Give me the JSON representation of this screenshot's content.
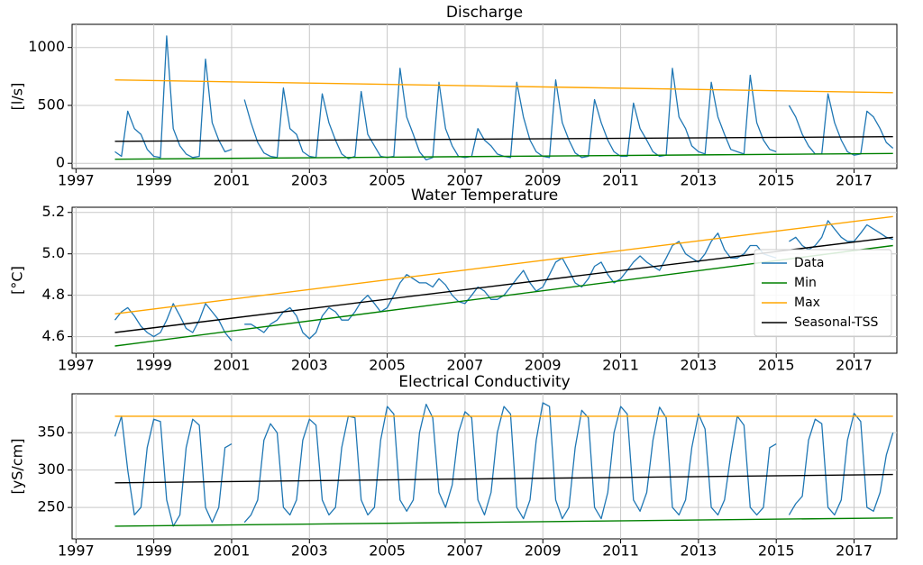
{
  "chart_data": [
    {
      "type": "line",
      "title": "Discharge",
      "ylabel": "[l/s]",
      "grid": true,
      "xlim": [
        1996.9,
        2018.1
      ],
      "xticks": [
        1997,
        1999,
        2001,
        2003,
        2005,
        2007,
        2009,
        2011,
        2013,
        2015,
        2017
      ],
      "ylim": [
        -45,
        1200
      ],
      "yticks": [
        0,
        500,
        1000
      ],
      "x": [
        1998,
        1998.17,
        1998.33,
        1998.5,
        1998.67,
        1998.83,
        1999,
        1999.17,
        1999.33,
        1999.5,
        1999.67,
        1999.83,
        2000,
        2000.17,
        2000.33,
        2000.5,
        2000.67,
        2000.83,
        2001,
        2001.17,
        2001.33,
        2001.5,
        2001.67,
        2001.83,
        2002,
        2002.17,
        2002.33,
        2002.5,
        2002.67,
        2002.83,
        2003,
        2003.17,
        2003.33,
        2003.5,
        2003.67,
        2003.83,
        2004,
        2004.17,
        2004.33,
        2004.5,
        2004.67,
        2004.83,
        2005,
        2005.17,
        2005.33,
        2005.5,
        2005.67,
        2005.83,
        2006,
        2006.17,
        2006.33,
        2006.5,
        2006.67,
        2006.83,
        2007,
        2007.17,
        2007.33,
        2007.5,
        2007.67,
        2007.83,
        2008,
        2008.17,
        2008.33,
        2008.5,
        2008.67,
        2008.83,
        2009,
        2009.17,
        2009.33,
        2009.5,
        2009.67,
        2009.83,
        2010,
        2010.17,
        2010.33,
        2010.5,
        2010.67,
        2010.83,
        2011,
        2011.17,
        2011.33,
        2011.5,
        2011.67,
        2011.83,
        2012,
        2012.17,
        2012.33,
        2012.5,
        2012.67,
        2012.83,
        2013,
        2013.17,
        2013.33,
        2013.5,
        2013.67,
        2013.83,
        2014,
        2014.17,
        2014.33,
        2014.5,
        2014.67,
        2014.83,
        2015,
        2015.17,
        2015.33,
        2015.5,
        2015.67,
        2015.83,
        2016,
        2016.17,
        2016.33,
        2016.5,
        2016.67,
        2016.83,
        2017,
        2017.17,
        2017.33,
        2017.5,
        2017.67,
        2017.83,
        2018
      ],
      "series": [
        {
          "name": "Data",
          "color": "#1f77b4",
          "values": [
            100,
            60,
            450,
            300,
            250,
            120,
            60,
            50,
            1100,
            300,
            150,
            80,
            50,
            60,
            900,
            350,
            200,
            100,
            120,
            null,
            550,
            350,
            180,
            90,
            60,
            50,
            650,
            300,
            250,
            100,
            60,
            50,
            600,
            350,
            200,
            80,
            40,
            60,
            620,
            250,
            150,
            60,
            50,
            60,
            820,
            400,
            250,
            100,
            30,
            50,
            700,
            300,
            150,
            60,
            50,
            60,
            300,
            200,
            150,
            80,
            60,
            50,
            700,
            400,
            200,
            100,
            60,
            50,
            720,
            350,
            200,
            90,
            50,
            60,
            550,
            350,
            200,
            100,
            60,
            60,
            520,
            300,
            200,
            100,
            60,
            70,
            820,
            400,
            300,
            150,
            100,
            80,
            700,
            400,
            250,
            120,
            100,
            80,
            760,
            350,
            200,
            120,
            100,
            null,
            500,
            400,
            250,
            150,
            80,
            80,
            600,
            350,
            200,
            100,
            70,
            80,
            450,
            400,
            300,
            180,
            130
          ]
        },
        {
          "name": "Min",
          "color": "#008000",
          "x": [
            1998,
            2018
          ],
          "values": [
            35,
            85
          ]
        },
        {
          "name": "Max",
          "color": "#ffa500",
          "x": [
            1998,
            2018
          ],
          "values": [
            720,
            610
          ]
        },
        {
          "name": "Seasonal-TSS",
          "color": "#000000",
          "x": [
            1998,
            2018
          ],
          "values": [
            190,
            230
          ]
        }
      ]
    },
    {
      "type": "line",
      "title": "Water Temperature",
      "ylabel": "[°C]",
      "grid": true,
      "legend": "center right",
      "xlim": [
        1996.9,
        2018.1
      ],
      "xticks": [
        1997,
        1999,
        2001,
        2003,
        2005,
        2007,
        2009,
        2011,
        2013,
        2015,
        2017
      ],
      "ylim": [
        4.52,
        5.225
      ],
      "yticks": [
        4.6,
        4.8,
        {
          "value": 5,
          "label": "5.0"
        },
        5.2
      ],
      "x": [
        1998,
        1998.17,
        1998.33,
        1998.5,
        1998.67,
        1998.83,
        1999,
        1999.17,
        1999.33,
        1999.5,
        1999.67,
        1999.83,
        2000,
        2000.17,
        2000.33,
        2000.5,
        2000.67,
        2000.83,
        2001,
        2001.17,
        2001.33,
        2001.5,
        2001.67,
        2001.83,
        2002,
        2002.17,
        2002.33,
        2002.5,
        2002.67,
        2002.83,
        2003,
        2003.17,
        2003.33,
        2003.5,
        2003.67,
        2003.83,
        2004,
        2004.17,
        2004.33,
        2004.5,
        2004.67,
        2004.83,
        2005,
        2005.17,
        2005.33,
        2005.5,
        2005.67,
        2005.83,
        2006,
        2006.17,
        2006.33,
        2006.5,
        2006.67,
        2006.83,
        2007,
        2007.17,
        2007.33,
        2007.5,
        2007.67,
        2007.83,
        2008,
        2008.17,
        2008.33,
        2008.5,
        2008.67,
        2008.83,
        2009,
        2009.17,
        2009.33,
        2009.5,
        2009.67,
        2009.83,
        2010,
        2010.17,
        2010.33,
        2010.5,
        2010.67,
        2010.83,
        2011,
        2011.17,
        2011.33,
        2011.5,
        2011.67,
        2011.83,
        2012,
        2012.17,
        2012.33,
        2012.5,
        2012.67,
        2012.83,
        2013,
        2013.17,
        2013.33,
        2013.5,
        2013.67,
        2013.83,
        2014,
        2014.17,
        2014.33,
        2014.5,
        2014.67,
        2014.83,
        2015,
        2015.17,
        2015.33,
        2015.5,
        2015.67,
        2015.83,
        2016,
        2016.17,
        2016.33,
        2016.5,
        2016.67,
        2016.83,
        2017,
        2017.17,
        2017.33,
        2017.5,
        2017.67,
        2017.83,
        2018
      ],
      "series": [
        {
          "name": "Data",
          "color": "#1f77b4",
          "values": [
            4.68,
            4.72,
            4.74,
            4.7,
            4.65,
            4.62,
            4.6,
            4.62,
            4.68,
            4.76,
            4.7,
            4.64,
            4.62,
            4.68,
            4.76,
            4.72,
            4.68,
            4.62,
            4.58,
            null,
            4.66,
            4.66,
            4.64,
            4.62,
            4.66,
            4.68,
            4.72,
            4.74,
            4.7,
            4.62,
            4.59,
            4.62,
            4.7,
            4.74,
            4.72,
            4.68,
            4.68,
            4.72,
            4.77,
            4.8,
            4.76,
            4.72,
            4.74,
            4.8,
            4.86,
            4.9,
            4.88,
            4.86,
            4.86,
            4.84,
            4.88,
            4.85,
            4.8,
            4.77,
            4.76,
            4.8,
            4.84,
            4.82,
            4.78,
            4.78,
            4.8,
            4.84,
            4.88,
            4.92,
            4.86,
            4.82,
            4.84,
            4.9,
            4.96,
            4.98,
            4.92,
            4.86,
            4.84,
            4.88,
            4.94,
            4.96,
            4.9,
            4.86,
            4.88,
            4.92,
            4.96,
            4.99,
            4.96,
            4.94,
            4.92,
            4.98,
            5.04,
            5.06,
            5,
            4.98,
            4.96,
            5,
            5.06,
            5.1,
            5.02,
            4.98,
            4.98,
            5,
            5.04,
            5.04,
            5,
            4.99,
            4.98,
            null,
            5.06,
            5.08,
            5.04,
            5.02,
            5.04,
            5.08,
            5.16,
            5.12,
            5.08,
            5.06,
            5.06,
            5.1,
            5.14,
            5.12,
            5.1,
            5.08,
            5.07
          ]
        },
        {
          "name": "Min",
          "color": "#008000",
          "x": [
            1998,
            2018
          ],
          "values": [
            4.555,
            5.04
          ]
        },
        {
          "name": "Max",
          "color": "#ffa500",
          "x": [
            1998,
            2018
          ],
          "values": [
            4.71,
            5.18
          ]
        },
        {
          "name": "Seasonal-TSS",
          "color": "#000000",
          "x": [
            1998,
            2018
          ],
          "values": [
            4.62,
            5.08
          ]
        }
      ]
    },
    {
      "type": "line",
      "title": "Electrical Conductivity",
      "ylabel": "[yS/cm]",
      "grid": true,
      "xlim": [
        1996.9,
        2018.1
      ],
      "xticks": [
        1997,
        1999,
        2001,
        2003,
        2005,
        2007,
        2009,
        2011,
        2013,
        2015,
        2017
      ],
      "ylim": [
        208,
        402
      ],
      "yticks": [
        250,
        300,
        350
      ],
      "x": [
        1998,
        1998.17,
        1998.33,
        1998.5,
        1998.67,
        1998.83,
        1999,
        1999.17,
        1999.33,
        1999.5,
        1999.67,
        1999.83,
        2000,
        2000.17,
        2000.33,
        2000.5,
        2000.67,
        2000.83,
        2001,
        2001.17,
        2001.33,
        2001.5,
        2001.67,
        2001.83,
        2002,
        2002.17,
        2002.33,
        2002.5,
        2002.67,
        2002.83,
        2003,
        2003.17,
        2003.33,
        2003.5,
        2003.67,
        2003.83,
        2004,
        2004.17,
        2004.33,
        2004.5,
        2004.67,
        2004.83,
        2005,
        2005.17,
        2005.33,
        2005.5,
        2005.67,
        2005.83,
        2006,
        2006.17,
        2006.33,
        2006.5,
        2006.67,
        2006.83,
        2007,
        2007.17,
        2007.33,
        2007.5,
        2007.67,
        2007.83,
        2008,
        2008.17,
        2008.33,
        2008.5,
        2008.67,
        2008.83,
        2009,
        2009.17,
        2009.33,
        2009.5,
        2009.67,
        2009.83,
        2010,
        2010.17,
        2010.33,
        2010.5,
        2010.67,
        2010.83,
        2011,
        2011.17,
        2011.33,
        2011.5,
        2011.67,
        2011.83,
        2012,
        2012.17,
        2012.33,
        2012.5,
        2012.67,
        2012.83,
        2013,
        2013.17,
        2013.33,
        2013.5,
        2013.67,
        2013.83,
        2014,
        2014.17,
        2014.33,
        2014.5,
        2014.67,
        2014.83,
        2015,
        2015.17,
        2015.33,
        2015.5,
        2015.67,
        2015.83,
        2016,
        2016.17,
        2016.33,
        2016.5,
        2016.67,
        2016.83,
        2017,
        2017.17,
        2017.33,
        2017.5,
        2017.67,
        2017.83,
        2018
      ],
      "series": [
        {
          "name": "Data",
          "color": "#1f77b4",
          "values": [
            345,
            372,
            300,
            240,
            250,
            330,
            368,
            365,
            260,
            225,
            240,
            330,
            368,
            360,
            250,
            230,
            250,
            330,
            335,
            null,
            230,
            240,
            260,
            340,
            362,
            350,
            250,
            240,
            260,
            340,
            368,
            360,
            260,
            240,
            250,
            330,
            372,
            370,
            260,
            240,
            250,
            340,
            385,
            375,
            260,
            245,
            260,
            350,
            388,
            370,
            270,
            250,
            280,
            350,
            378,
            370,
            260,
            240,
            270,
            350,
            385,
            375,
            250,
            235,
            260,
            340,
            390,
            385,
            260,
            235,
            250,
            330,
            380,
            370,
            250,
            235,
            270,
            350,
            385,
            375,
            260,
            245,
            270,
            340,
            384,
            370,
            250,
            240,
            260,
            330,
            375,
            355,
            250,
            240,
            260,
            320,
            372,
            360,
            250,
            240,
            250,
            330,
            335,
            null,
            240,
            255,
            265,
            340,
            368,
            362,
            250,
            240,
            260,
            340,
            376,
            365,
            250,
            245,
            270,
            320,
            350
          ]
        },
        {
          "name": "Min",
          "color": "#008000",
          "x": [
            1998,
            2018
          ],
          "values": [
            225,
            236
          ]
        },
        {
          "name": "Max",
          "color": "#ffa500",
          "x": [
            1998,
            2018
          ],
          "values": [
            372,
            372
          ]
        },
        {
          "name": "Seasonal-TSS",
          "color": "#000000",
          "x": [
            1998,
            2018
          ],
          "values": [
            283,
            294
          ]
        }
      ]
    }
  ]
}
